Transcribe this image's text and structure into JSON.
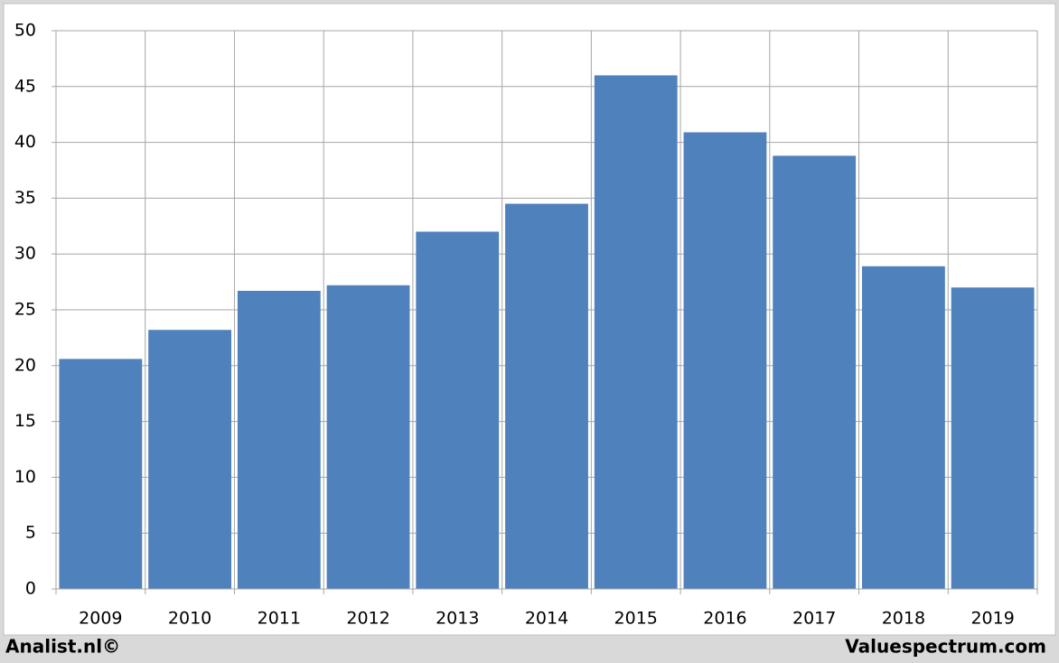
{
  "chart_data": {
    "type": "bar",
    "categories": [
      "2009",
      "2010",
      "2011",
      "2012",
      "2013",
      "2014",
      "2015",
      "2016",
      "2017",
      "2018",
      "2019"
    ],
    "values": [
      20.6,
      23.2,
      26.7,
      27.2,
      32.0,
      34.5,
      46.0,
      40.9,
      38.8,
      28.9,
      27.0
    ],
    "color": "#4f81bd",
    "ylim": [
      0,
      50
    ],
    "yticks": [
      0,
      5,
      10,
      15,
      20,
      25,
      30,
      35,
      40,
      45,
      50
    ],
    "grid": true
  },
  "footer": {
    "left": "Analist.nl©",
    "right": "Valuespectrum.com"
  }
}
